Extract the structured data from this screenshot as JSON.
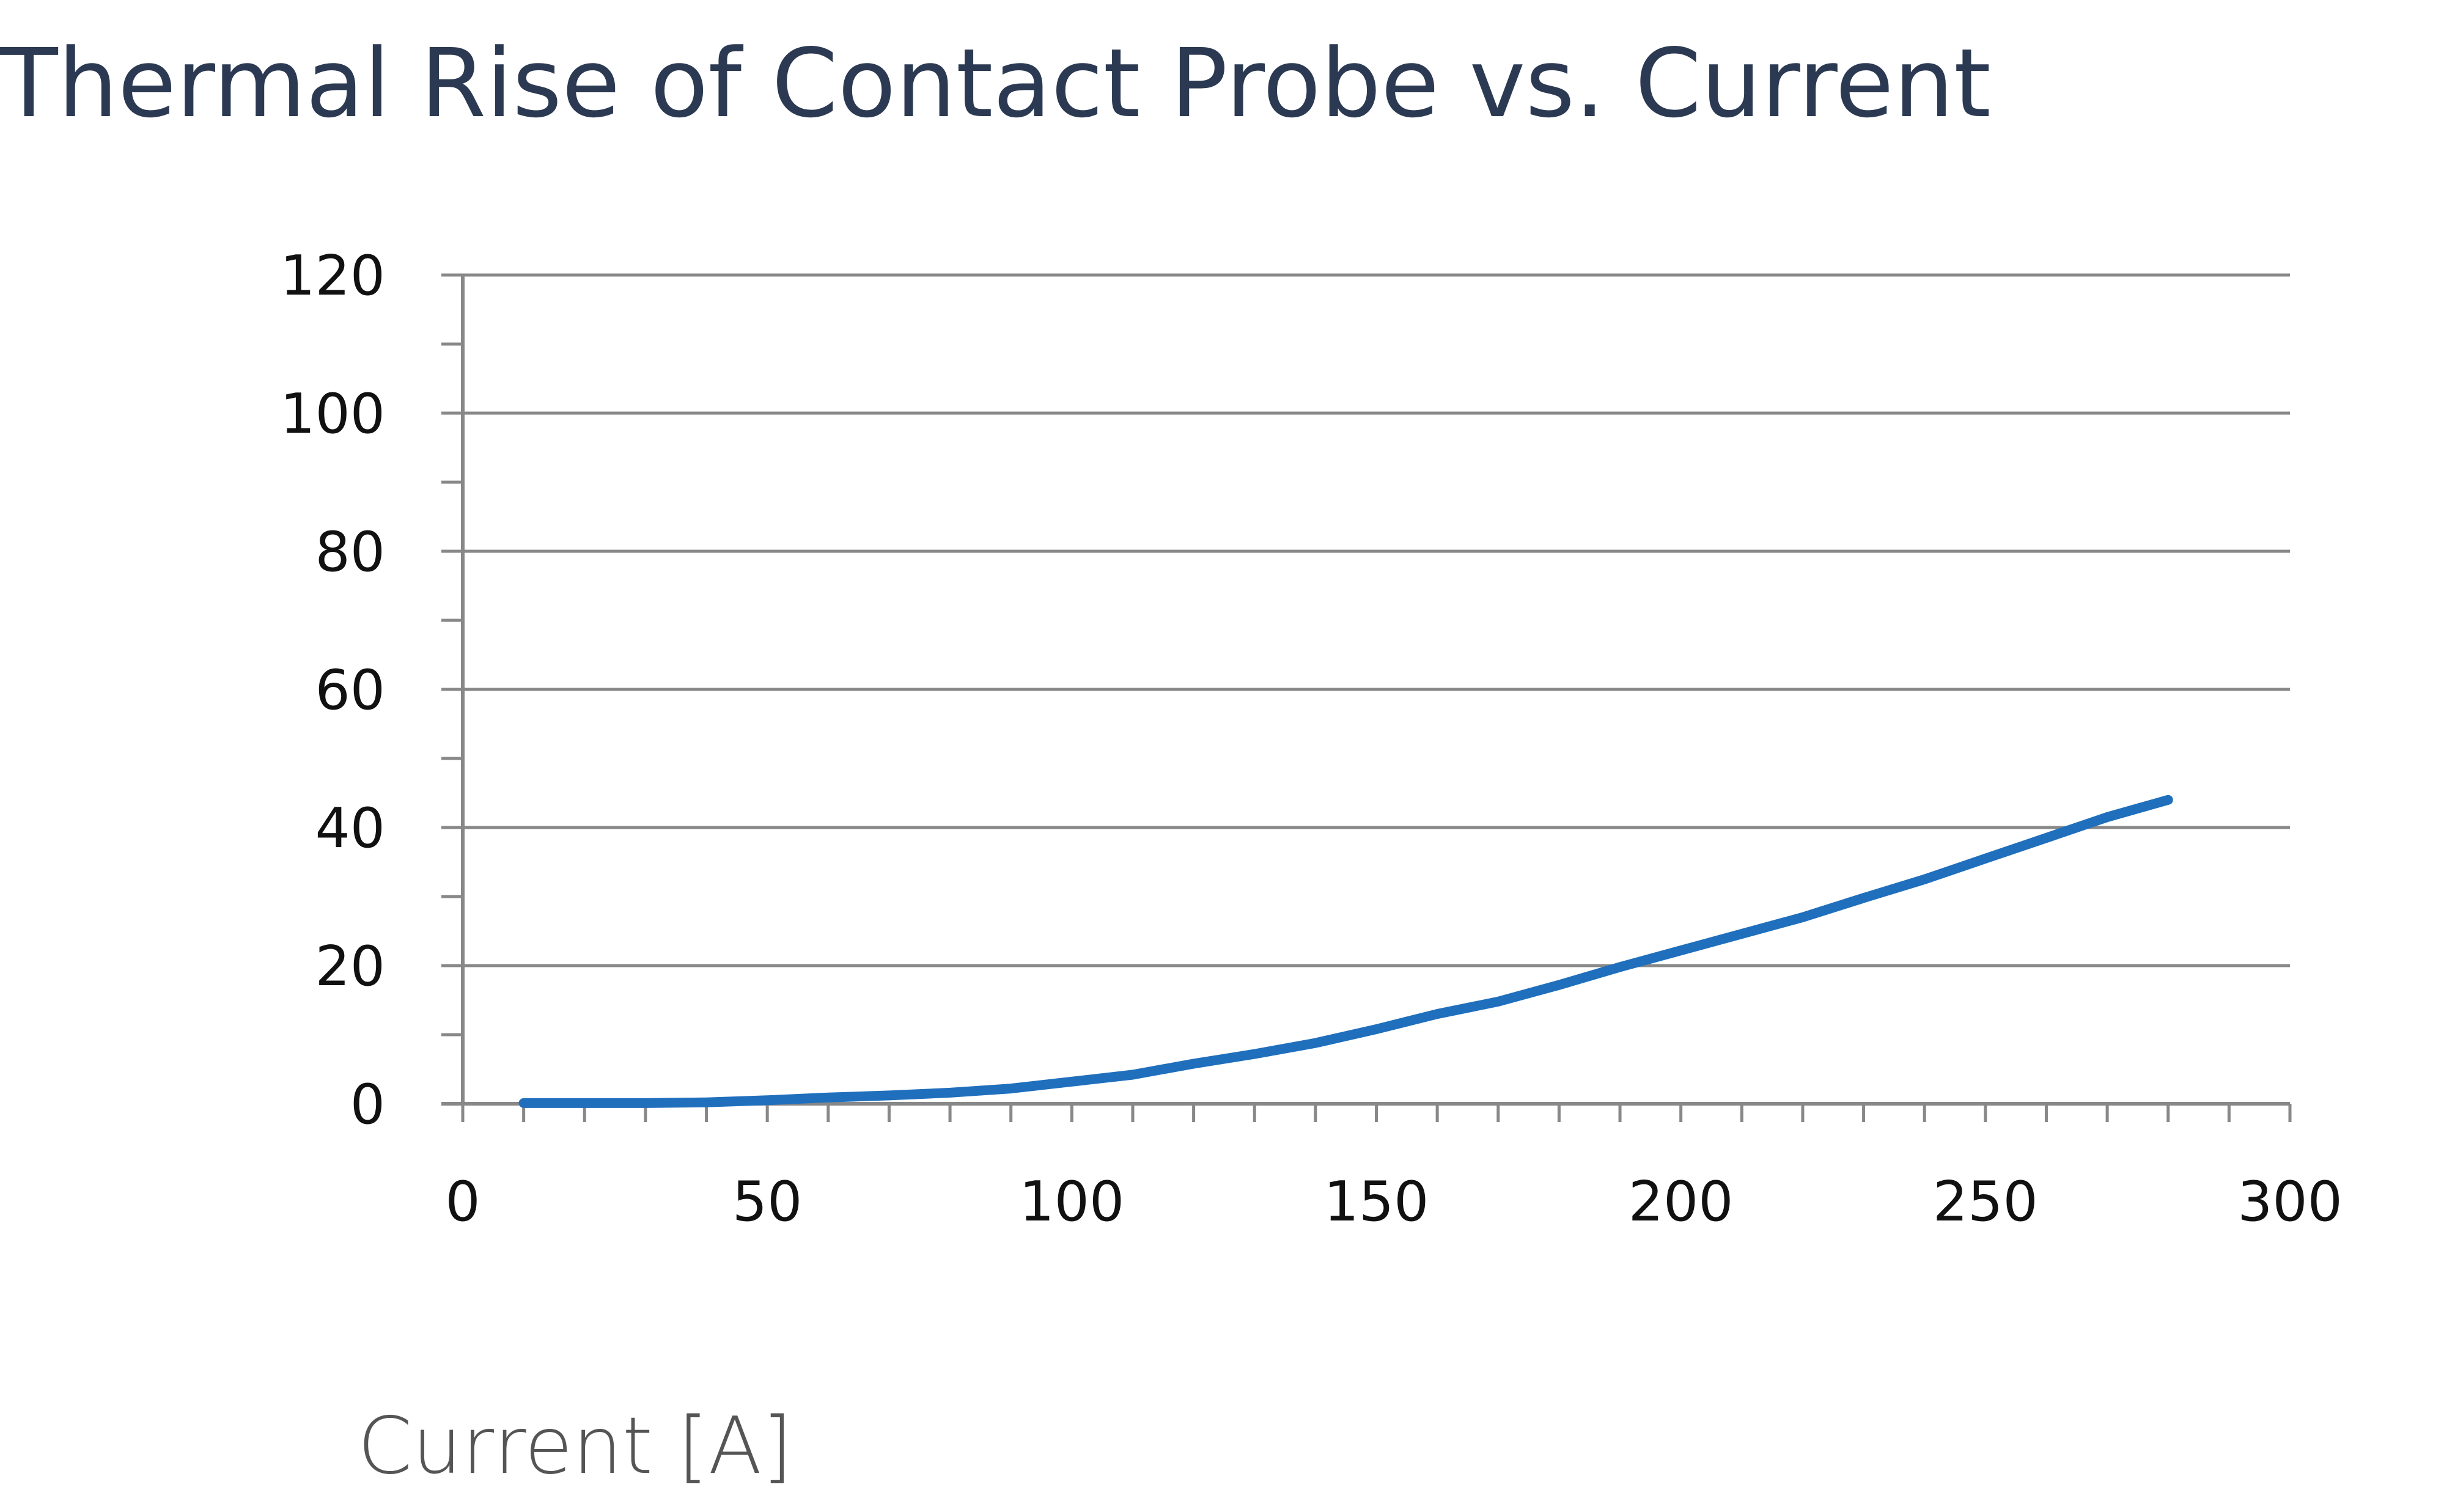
{
  "chart_data": {
    "type": "line",
    "title": "Thermal Rise of Contact Probe vs. Current",
    "xlabel": "Current [A]",
    "ylabel": "",
    "xlim": [
      0,
      300
    ],
    "ylim": [
      0,
      120
    ],
    "x_ticks": [
      0,
      50,
      100,
      150,
      200,
      250,
      300
    ],
    "y_ticks": [
      0,
      20,
      40,
      60,
      80,
      100,
      120
    ],
    "x_minor_step": 10,
    "y_minor_step": 10,
    "grid": "horizontal",
    "legend": "none",
    "colors": {
      "line": "#1f6fbd",
      "grid": "#888888",
      "axis": "#888888",
      "title": "#2b3a52"
    },
    "series": [
      {
        "x": [
          10,
          20,
          30,
          40,
          50,
          60,
          70,
          80,
          90,
          100,
          110,
          120,
          130,
          140,
          150,
          160,
          170,
          180,
          190,
          200,
          210,
          220,
          230,
          240,
          250,
          260,
          270,
          280
        ],
        "values": [
          0.1,
          0.1,
          0.1,
          0.2,
          0.5,
          0.9,
          1.2,
          1.6,
          2.2,
          3.2,
          4.2,
          5.8,
          7.2,
          8.8,
          10.8,
          13,
          14.8,
          17.2,
          19.8,
          22.2,
          24.6,
          27,
          29.8,
          32.5,
          35.5,
          38.5,
          41.5,
          44
        ]
      }
    ]
  }
}
